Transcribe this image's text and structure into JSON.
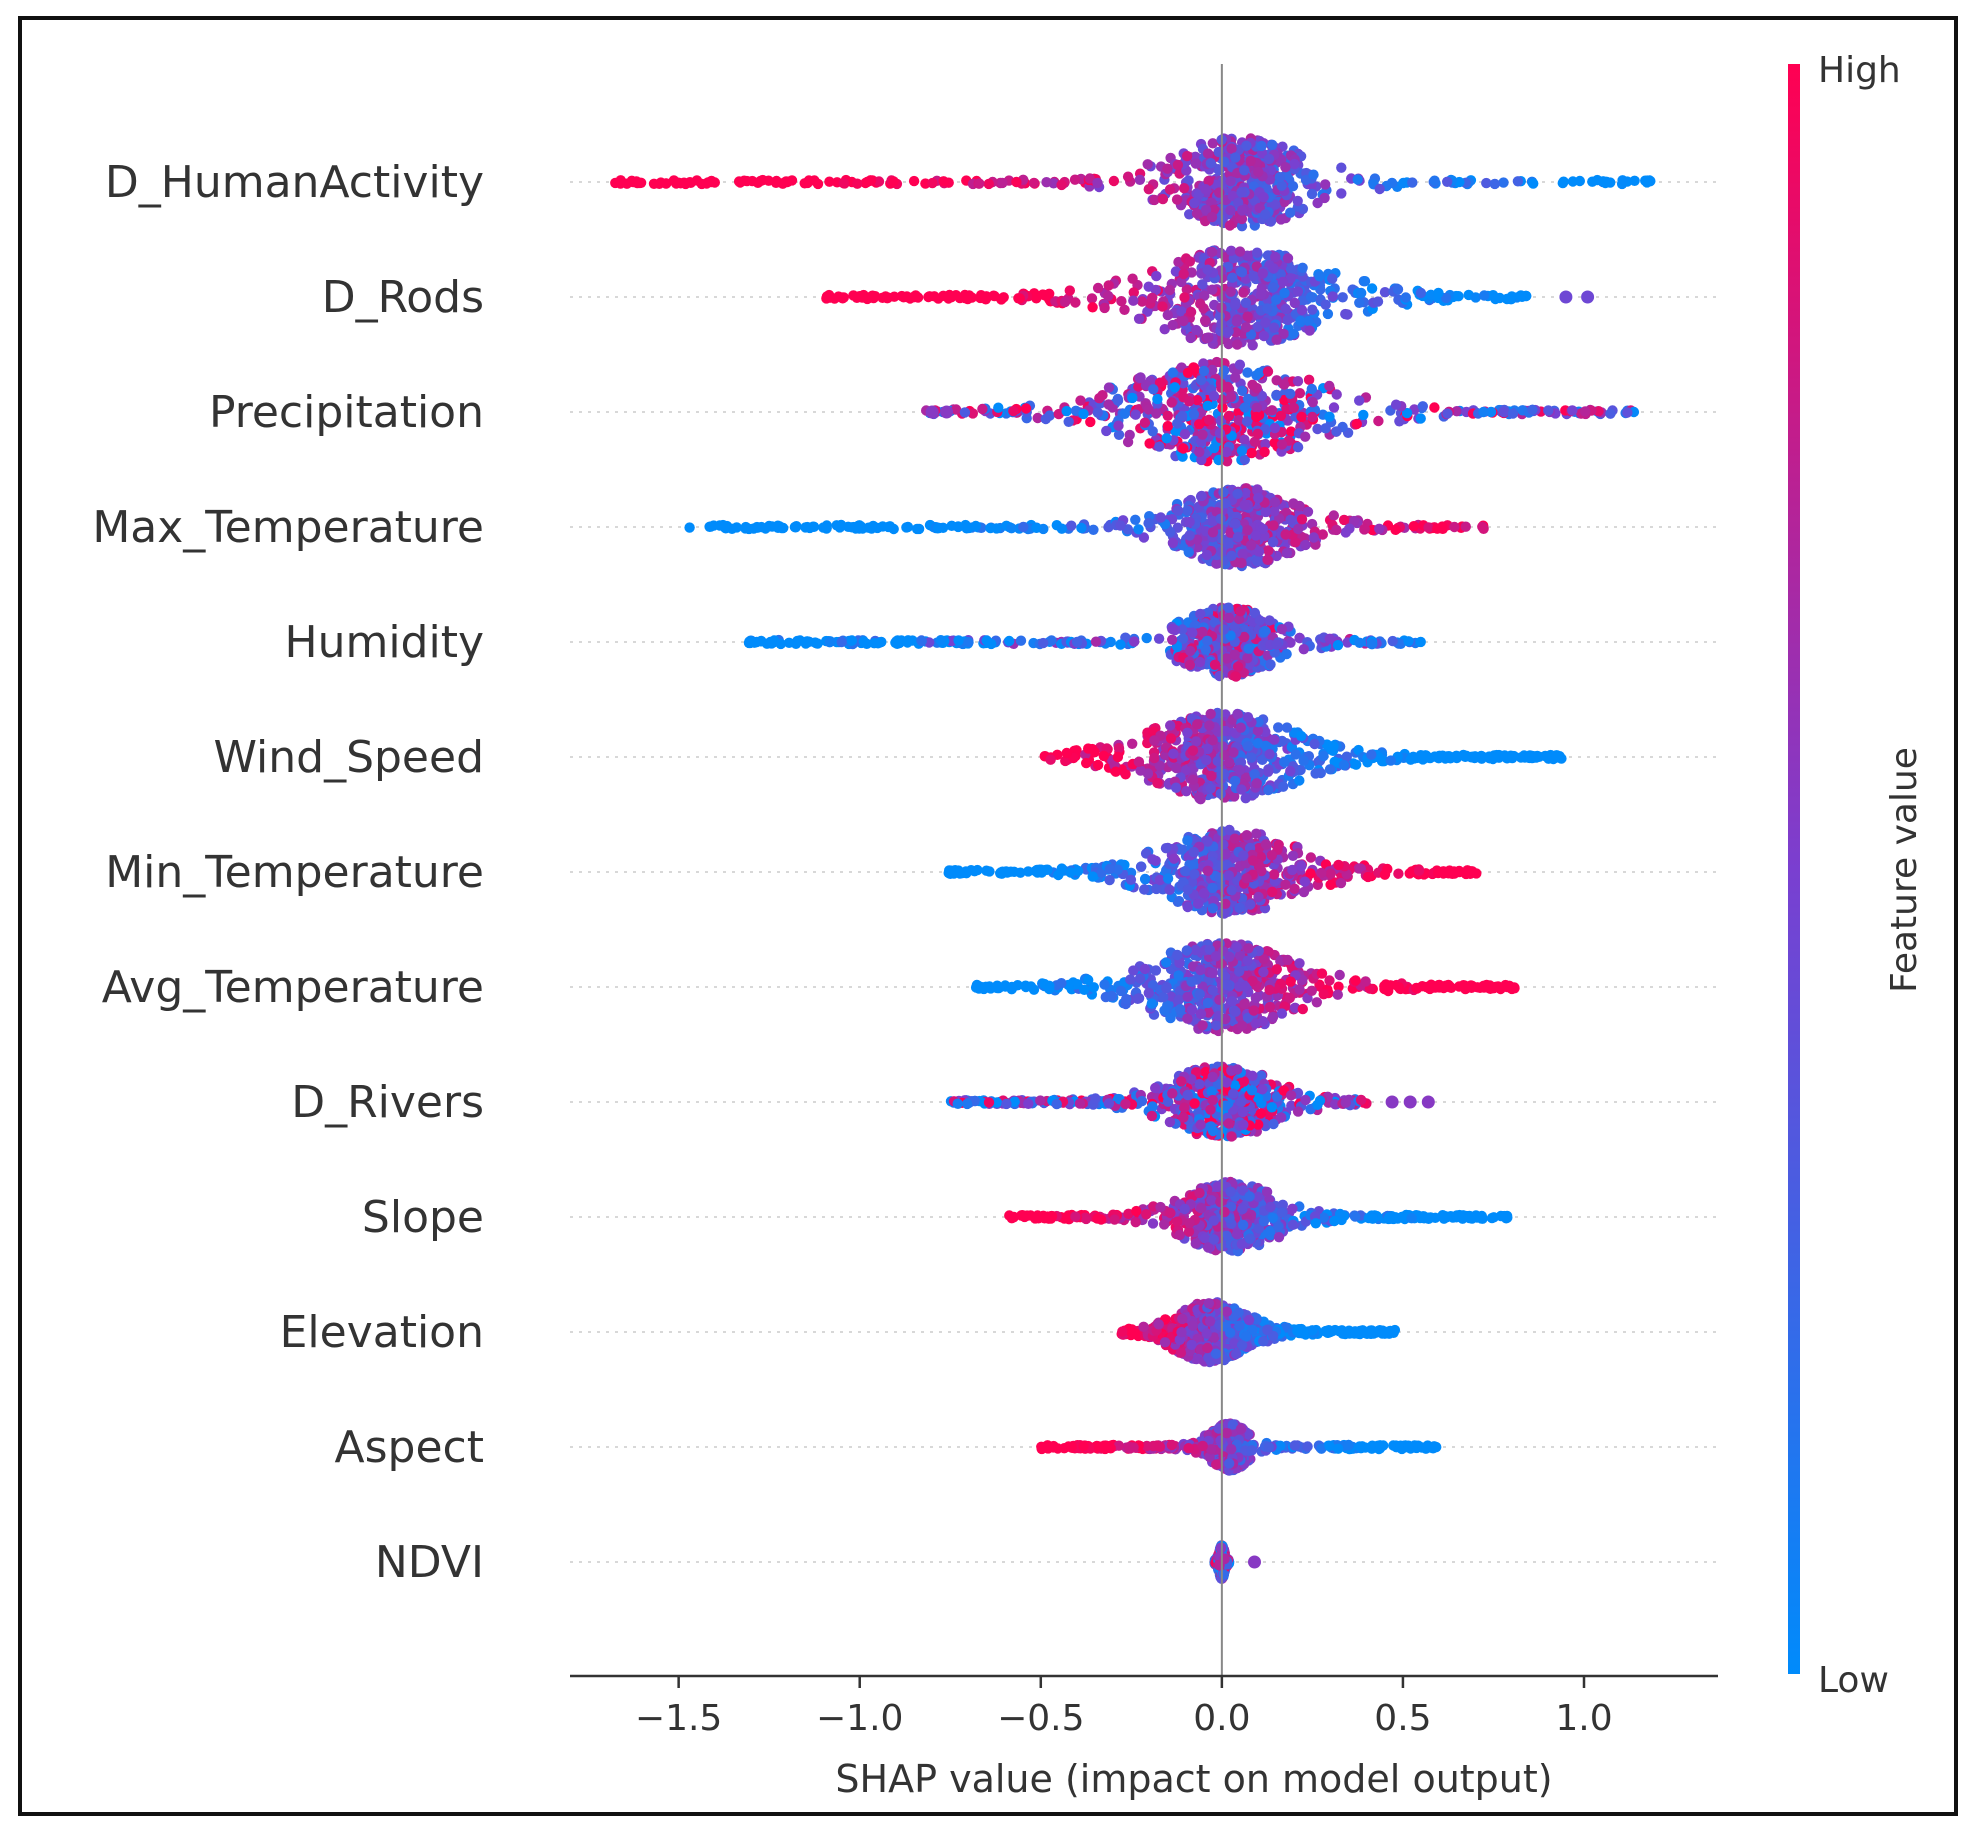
{
  "chart_data": {
    "type": "scatter",
    "subtype": "shap-beeswarm",
    "title": "",
    "xlabel": "SHAP value (impact on model output)",
    "ylabel": "",
    "xlim": [
      -1.8,
      1.37
    ],
    "xticks": [
      -1.5,
      -1.0,
      -0.5,
      0.0,
      0.5,
      1.0
    ],
    "xtick_labels": [
      "−1.5",
      "−1.0",
      "−0.5",
      "0.0",
      "0.5",
      "1.0"
    ],
    "colorbar": {
      "label": "Feature value",
      "high_label": "High",
      "low_label": "Low",
      "high_color": "#ff0052",
      "low_color": "#008bfb"
    },
    "features": [
      {
        "name": "D_HumanActivity",
        "min": -1.68,
        "max": 1.22,
        "peak": 0.05,
        "spread": 0.3,
        "lowSide": "right",
        "isolated": []
      },
      {
        "name": "D_Rods",
        "min": -1.1,
        "max": 0.85,
        "peak": 0.05,
        "spread": 0.35,
        "lowSide": "right",
        "isolated": [
          0.95,
          1.01
        ]
      },
      {
        "name": "Precipitation",
        "min": -0.82,
        "max": 1.15,
        "peak": 0.0,
        "spread": 0.4,
        "lowSide": "mixed",
        "isolated": [
          -0.8,
          -0.76
        ]
      },
      {
        "name": "Max_Temperature",
        "min": -1.47,
        "max": 0.75,
        "peak": 0.05,
        "spread": 0.25,
        "lowSide": "left",
        "isolated": []
      },
      {
        "name": "Humidity",
        "min": -1.31,
        "max": 0.55,
        "peak": 0.02,
        "spread": 0.2,
        "lowSide": "mixed-left",
        "isolated": []
      },
      {
        "name": "Wind_Speed",
        "min": -0.49,
        "max": 0.94,
        "peak": 0.0,
        "spread": 0.3,
        "lowSide": "right",
        "isolated": []
      },
      {
        "name": "Min_Temperature",
        "min": -0.76,
        "max": 0.71,
        "peak": 0.02,
        "spread": 0.28,
        "lowSide": "left",
        "isolated": []
      },
      {
        "name": "Avg_Temperature",
        "min": -0.69,
        "max": 0.81,
        "peak": 0.0,
        "spread": 0.3,
        "lowSide": "left",
        "isolated": []
      },
      {
        "name": "D_Rivers",
        "min": -0.75,
        "max": 0.4,
        "peak": 0.0,
        "spread": 0.22,
        "lowSide": "mixed",
        "isolated": [
          0.47,
          0.52,
          0.57
        ]
      },
      {
        "name": "Slope",
        "min": -0.59,
        "max": 0.79,
        "peak": 0.02,
        "spread": 0.2,
        "lowSide": "right",
        "isolated": []
      },
      {
        "name": "Elevation",
        "min": -0.28,
        "max": 0.48,
        "peak": -0.03,
        "spread": 0.15,
        "lowSide": "right",
        "isolated": []
      },
      {
        "name": "Aspect",
        "min": -0.5,
        "max": 0.6,
        "peak": 0.02,
        "spread": 0.08,
        "lowSide": "right",
        "isolated": []
      },
      {
        "name": "NDVI",
        "min": -0.02,
        "max": 0.02,
        "peak": 0.0,
        "spread": 0.01,
        "lowSide": "mixed",
        "isolated": [
          0.09
        ]
      }
    ]
  }
}
